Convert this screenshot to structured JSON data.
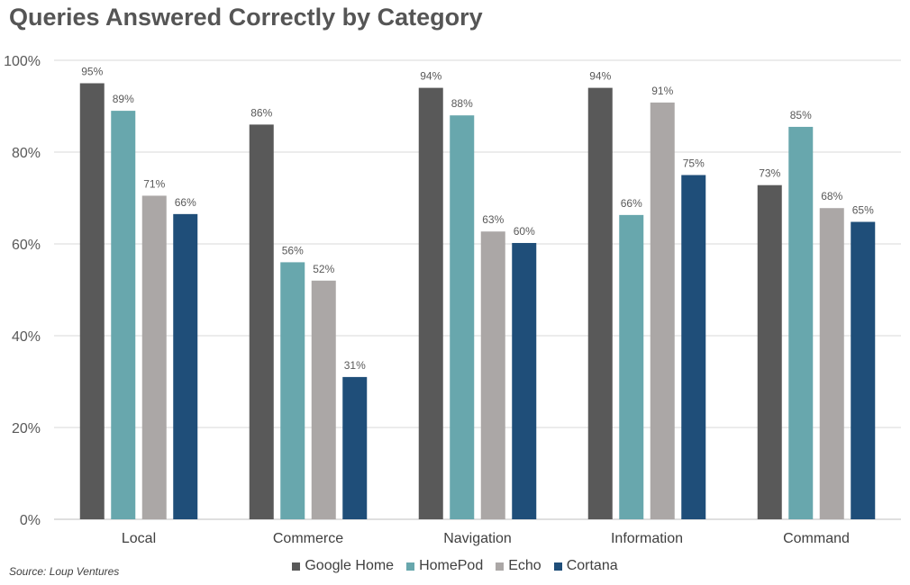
{
  "chart_data": {
    "type": "bar",
    "title": "Queries Answered Correctly by Category",
    "categories": [
      "Local",
      "Commerce",
      "Navigation",
      "Information",
      "Command"
    ],
    "series": [
      {
        "name": "Google Home",
        "color": "#595959",
        "values": [
          95,
          86,
          94,
          94,
          73
        ]
      },
      {
        "name": "HomePod",
        "color": "#68A7AD",
        "values": [
          89,
          56,
          88,
          66,
          85
        ]
      },
      {
        "name": "Echo",
        "color": "#ABA7A6",
        "values": [
          71,
          52,
          63,
          91,
          68
        ]
      },
      {
        "name": "Cortana",
        "color": "#1F4E79",
        "values": [
          66,
          31,
          60,
          75,
          65
        ]
      }
    ],
    "bar_values": [
      [
        95,
        89,
        70.5,
        66.5
      ],
      [
        86,
        56,
        52,
        31
      ],
      [
        94,
        88,
        62.7,
        60.2
      ],
      [
        94,
        66.3,
        90.8,
        75
      ],
      [
        72.8,
        85.5,
        67.8,
        64.8
      ]
    ],
    "y_ticks": [
      "0%",
      "20%",
      "40%",
      "60%",
      "80%",
      "100%"
    ],
    "ylim": [
      0,
      100
    ],
    "grid": true,
    "legend_position": "bottom",
    "source": "Source: Loup Ventures"
  }
}
